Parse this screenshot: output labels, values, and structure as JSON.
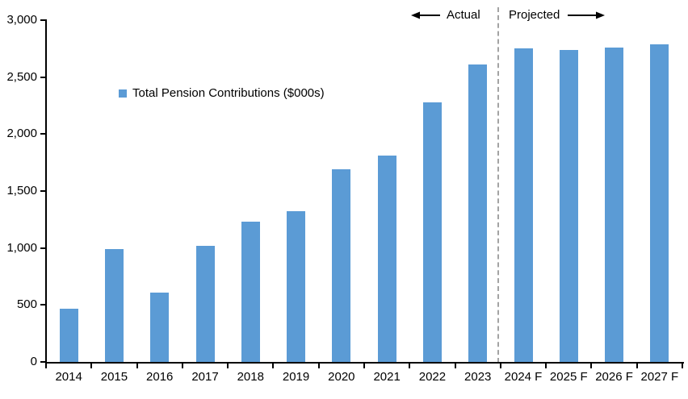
{
  "chart_data": {
    "type": "bar",
    "title": "",
    "categories": [
      "2014",
      "2015",
      "2016",
      "2017",
      "2018",
      "2019",
      "2020",
      "2021",
      "2022",
      "2023",
      "2024 F",
      "2025 F",
      "2026 F",
      "2027 F"
    ],
    "values": [
      470,
      990,
      610,
      1020,
      1230,
      1320,
      1690,
      1810,
      2280,
      2610,
      2750,
      2740,
      2760,
      2790
    ],
    "series_name": "Total Pension Contributions ($000s)",
    "xlabel": "",
    "ylabel": "",
    "ylim": [
      0,
      3000
    ],
    "yticks": [
      0,
      500,
      1000,
      1500,
      2000,
      2500,
      3000
    ],
    "ytick_labels": [
      "0",
      "500",
      "1,000",
      "1,500",
      "2,000",
      "2,500",
      "3,000"
    ],
    "grid": false,
    "legend_position": "inside-upper-left",
    "bar_color": "#5B9BD5",
    "separator_after_category": "2023",
    "annotations": {
      "actual_label": "Actual",
      "projected_label": "Projected"
    }
  },
  "legend": {
    "label": "Total Pension Contributions ($000s)"
  },
  "annotations": {
    "actual": "Actual",
    "projected": "Projected"
  },
  "colors": {
    "bar": "#5B9BD5",
    "axis": "#000000",
    "separator": "#A3A3A3",
    "text": "#000000"
  }
}
